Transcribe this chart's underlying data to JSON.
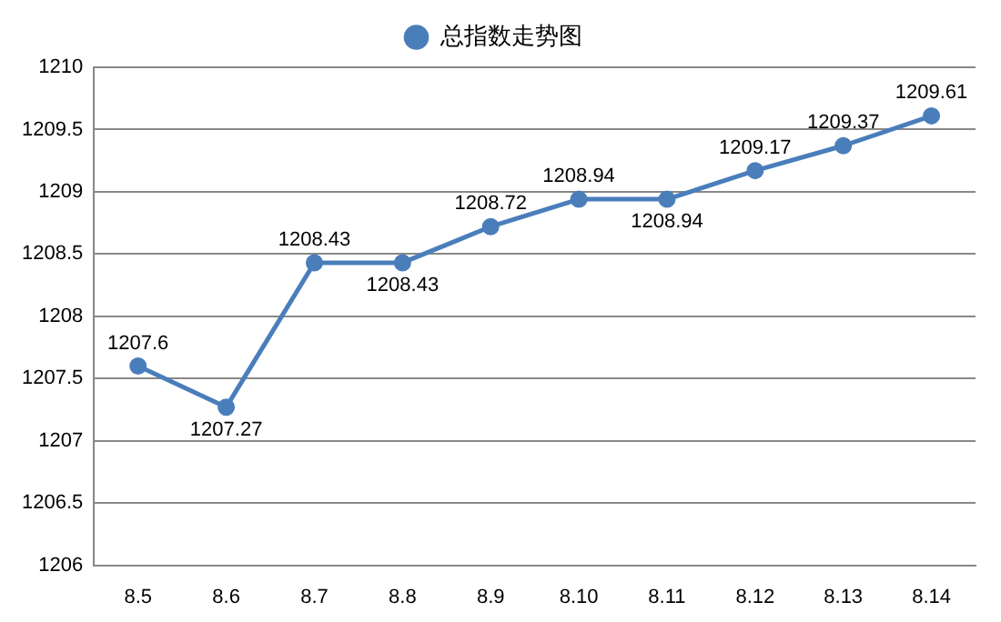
{
  "chart_data": {
    "type": "line",
    "categories": [
      "8.5",
      "8.6",
      "8.7",
      "8.8",
      "8.9",
      "8.10",
      "8.11",
      "8.12",
      "8.13",
      "8.14"
    ],
    "series": [
      {
        "name": "总指数走势图",
        "color": "#4a7ebb",
        "values": [
          1207.6,
          1207.27,
          1208.43,
          1208.43,
          1208.72,
          1208.94,
          1208.94,
          1209.17,
          1209.37,
          1209.61
        ]
      }
    ],
    "ylim": [
      1206,
      1210
    ],
    "yticks": [
      1206,
      1206.5,
      1207,
      1207.5,
      1208,
      1208.5,
      1209,
      1209.5,
      1210
    ],
    "grid": "y",
    "legend": "top",
    "marker": "circle",
    "line_style": "solid",
    "data_labels": true
  }
}
